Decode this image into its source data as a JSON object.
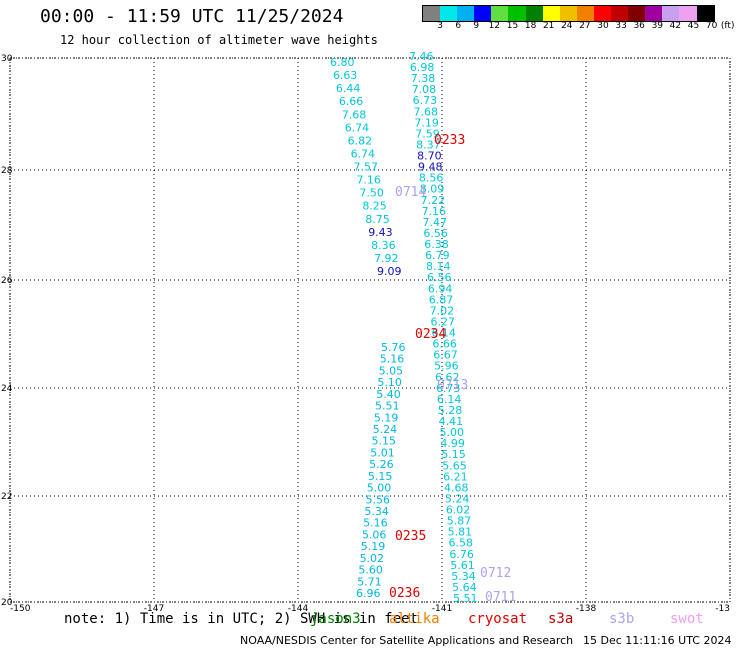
{
  "header": {
    "title": "00:00 - 11:59 UTC 11/25/2024",
    "subtitle": "12 hour collection of altimeter wave heights"
  },
  "legend": {
    "unit": "(ft)",
    "ticks": [
      "3",
      "6",
      "9",
      "12",
      "15",
      "18",
      "21",
      "24",
      "27",
      "30",
      "33",
      "36",
      "39",
      "42",
      "45",
      "70"
    ],
    "colors": [
      "#808080",
      "#00e8e8",
      "#00b0f0",
      "#0000ff",
      "#60e040",
      "#00c000",
      "#008000",
      "#ffff00",
      "#f0c000",
      "#f08000",
      "#ff0000",
      "#c00000",
      "#800000",
      "#a000a0",
      "#c8a0f0",
      "#f0a0f0",
      "#000000"
    ]
  },
  "axes": {
    "lon_ticks": [
      "-150",
      "-147",
      "-144",
      "-141",
      "-138",
      "-13"
    ],
    "lat_ticks": [
      "30",
      "28",
      "26",
      "24",
      "22",
      "20"
    ]
  },
  "colors": {
    "cyan": "#00b8e0",
    "light_cyan": "#00c8d8",
    "blue": "#1010c0",
    "red": "#e00000",
    "lavender": "#b0a0f0"
  },
  "track_left": [
    {
      "v": "6.80",
      "c": "light_cyan"
    },
    {
      "v": "6.63",
      "c": "light_cyan"
    },
    {
      "v": "6.44",
      "c": "light_cyan"
    },
    {
      "v": "6.66",
      "c": "light_cyan"
    },
    {
      "v": "7.68",
      "c": "light_cyan"
    },
    {
      "v": "6.74",
      "c": "light_cyan"
    },
    {
      "v": "6.82",
      "c": "light_cyan"
    },
    {
      "v": "6.74",
      "c": "light_cyan"
    },
    {
      "v": "7.57",
      "c": "light_cyan"
    },
    {
      "v": "7.16",
      "c": "light_cyan"
    },
    {
      "v": "7.50",
      "c": "light_cyan"
    },
    {
      "v": "8.25",
      "c": "light_cyan"
    },
    {
      "v": "8.75",
      "c": "light_cyan"
    },
    {
      "v": "9.43",
      "c": "blue"
    },
    {
      "v": "8.36",
      "c": "light_cyan"
    },
    {
      "v": "7.92",
      "c": "light_cyan"
    },
    {
      "v": "9.09",
      "c": "blue"
    }
  ],
  "track_right": [
    {
      "v": "7.46",
      "c": "light_cyan"
    },
    {
      "v": "6.98",
      "c": "light_cyan"
    },
    {
      "v": "7.38",
      "c": "light_cyan"
    },
    {
      "v": "7.08",
      "c": "light_cyan"
    },
    {
      "v": "6.73",
      "c": "light_cyan"
    },
    {
      "v": "7.68",
      "c": "light_cyan"
    },
    {
      "v": "7.19",
      "c": "light_cyan"
    },
    {
      "v": "7.59",
      "c": "light_cyan"
    },
    {
      "v": "8.37",
      "c": "light_cyan"
    },
    {
      "v": "8.70",
      "c": "blue"
    },
    {
      "v": "9.48",
      "c": "blue"
    },
    {
      "v": "8.56",
      "c": "light_cyan"
    },
    {
      "v": "8.09",
      "c": "light_cyan"
    },
    {
      "v": "7.22",
      "c": "light_cyan"
    },
    {
      "v": "7.16",
      "c": "light_cyan"
    },
    {
      "v": "7.47",
      "c": "light_cyan"
    },
    {
      "v": "6.56",
      "c": "light_cyan"
    },
    {
      "v": "6.38",
      "c": "light_cyan"
    },
    {
      "v": "6.79",
      "c": "light_cyan"
    },
    {
      "v": "8.14",
      "c": "light_cyan"
    },
    {
      "v": "6.56",
      "c": "light_cyan"
    },
    {
      "v": "6.94",
      "c": "light_cyan"
    },
    {
      "v": "6.87",
      "c": "light_cyan"
    },
    {
      "v": "7.02",
      "c": "light_cyan"
    },
    {
      "v": "6.27",
      "c": "light_cyan"
    },
    {
      "v": "6.14",
      "c": "light_cyan"
    },
    {
      "v": "6.66",
      "c": "light_cyan"
    },
    {
      "v": "6.67",
      "c": "light_cyan"
    },
    {
      "v": "5.96",
      "c": "light_cyan"
    },
    {
      "v": "6.62",
      "c": "light_cyan"
    },
    {
      "v": "6.73",
      "c": "light_cyan"
    },
    {
      "v": "6.14",
      "c": "light_cyan"
    },
    {
      "v": "5.28",
      "c": "light_cyan"
    },
    {
      "v": "4.41",
      "c": "light_cyan"
    },
    {
      "v": "5.00",
      "c": "light_cyan"
    },
    {
      "v": "4.99",
      "c": "light_cyan"
    },
    {
      "v": "5.15",
      "c": "light_cyan"
    },
    {
      "v": "5.65",
      "c": "light_cyan"
    },
    {
      "v": "6.21",
      "c": "light_cyan"
    },
    {
      "v": "4.68",
      "c": "light_cyan"
    },
    {
      "v": "5.24",
      "c": "light_cyan"
    },
    {
      "v": "6.02",
      "c": "light_cyan"
    },
    {
      "v": "5.87",
      "c": "light_cyan"
    },
    {
      "v": "5.81",
      "c": "light_cyan"
    },
    {
      "v": "6.58",
      "c": "light_cyan"
    },
    {
      "v": "6.76",
      "c": "light_cyan"
    },
    {
      "v": "5.61",
      "c": "light_cyan"
    },
    {
      "v": "5.34",
      "c": "light_cyan"
    },
    {
      "v": "5.64",
      "c": "light_cyan"
    },
    {
      "v": "5.51",
      "c": "light_cyan"
    }
  ],
  "track_main": [
    {
      "v": "5.76",
      "c": "cyan"
    },
    {
      "v": "5.16",
      "c": "cyan"
    },
    {
      "v": "5.05",
      "c": "cyan"
    },
    {
      "v": "5.10",
      "c": "cyan"
    },
    {
      "v": "5.40",
      "c": "cyan"
    },
    {
      "v": "5.51",
      "c": "cyan"
    },
    {
      "v": "5.19",
      "c": "cyan"
    },
    {
      "v": "5.24",
      "c": "cyan"
    },
    {
      "v": "5.15",
      "c": "cyan"
    },
    {
      "v": "5.01",
      "c": "cyan"
    },
    {
      "v": "5.26",
      "c": "cyan"
    },
    {
      "v": "5.15",
      "c": "cyan"
    },
    {
      "v": "5.00",
      "c": "cyan"
    },
    {
      "v": "5.56",
      "c": "cyan"
    },
    {
      "v": "5.34",
      "c": "cyan"
    },
    {
      "v": "5.16",
      "c": "cyan"
    },
    {
      "v": "5.06",
      "c": "cyan"
    },
    {
      "v": "5.19",
      "c": "cyan"
    },
    {
      "v": "5.02",
      "c": "cyan"
    },
    {
      "v": "5.60",
      "c": "cyan"
    },
    {
      "v": "5.71",
      "c": "cyan"
    },
    {
      "v": "6.96",
      "c": "cyan"
    }
  ],
  "pass_labels": [
    {
      "text": "0233",
      "c": "red"
    },
    {
      "text": "0234",
      "c": "red"
    },
    {
      "text": "0235",
      "c": "red"
    },
    {
      "text": "0236",
      "c": "red"
    },
    {
      "text": "0713",
      "c": "lavender"
    },
    {
      "text": "0712",
      "c": "lavender"
    },
    {
      "text": "0711",
      "c": "lavender"
    },
    {
      "text": "0714",
      "c": "lavender"
    }
  ],
  "footer": {
    "note": "note: 1) Time is in UTC; 2) SWH is in feet",
    "satellites": [
      {
        "name": "jason3",
        "color": "#008000"
      },
      {
        "name": "altika",
        "color": "#f08000"
      },
      {
        "name": "cryosat",
        "color": "#e00000"
      },
      {
        "name": "s3a",
        "color": "#c00000"
      },
      {
        "name": "s3b",
        "color": "#b0a0f0"
      },
      {
        "name": "swot",
        "color": "#f0a0f0"
      }
    ],
    "credit": "NOAA/NESDIS Center for Satellite Applications and Research",
    "date": "15 Dec 11:11:16 UTC 2024"
  }
}
